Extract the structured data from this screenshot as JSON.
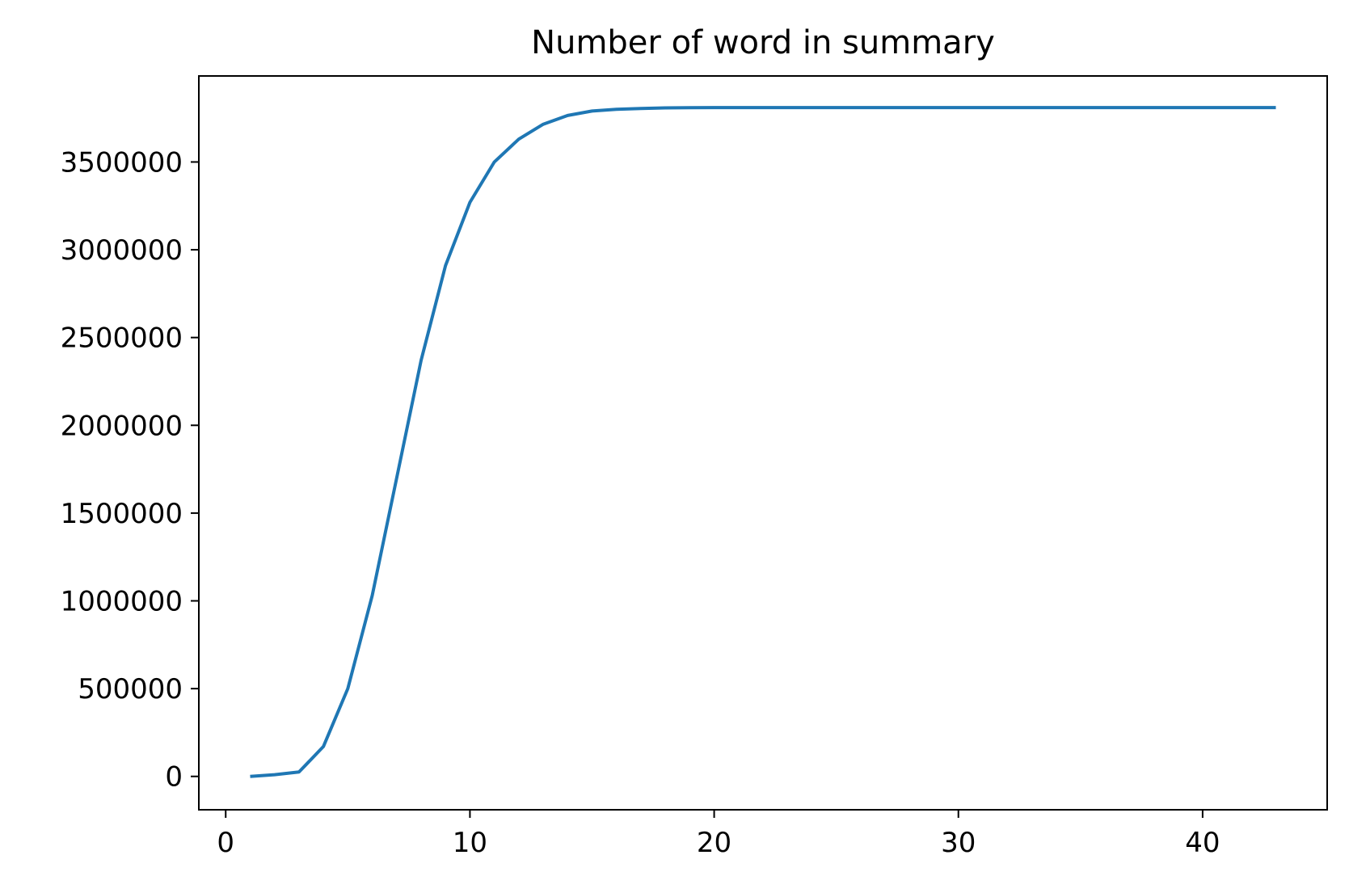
{
  "chart_data": {
    "type": "line",
    "title": "Number of word in summary",
    "xlabel": "",
    "ylabel": "",
    "xlim": [
      -1.1,
      45.1
    ],
    "ylim": [
      -190000,
      3990000
    ],
    "x_ticks": [
      0,
      10,
      20,
      30,
      40
    ],
    "y_ticks": [
      0,
      500000,
      1000000,
      1500000,
      2000000,
      2500000,
      3000000,
      3500000
    ],
    "x_tick_labels": [
      "0",
      "10",
      "20",
      "30",
      "40"
    ],
    "y_tick_labels": [
      "0",
      "500000",
      "1000000",
      "1500000",
      "2000000",
      "2500000",
      "3000000",
      "3500000"
    ],
    "grid": false,
    "legend": "none",
    "series": [
      {
        "color": "#1f77b4",
        "x": [
          1,
          2,
          3,
          4,
          5,
          6,
          7,
          8,
          9,
          10,
          11,
          12,
          13,
          14,
          15,
          16,
          17,
          18,
          19,
          20,
          21,
          22,
          23,
          24,
          25,
          26,
          27,
          28,
          29,
          30,
          31,
          32,
          33,
          34,
          35,
          36,
          37,
          38,
          39,
          40,
          41,
          42,
          43
        ],
        "y": [
          0,
          10000,
          25000,
          170000,
          500000,
          1030000,
          1700000,
          2370000,
          2910000,
          3270000,
          3500000,
          3630000,
          3715000,
          3765000,
          3790000,
          3800000,
          3805000,
          3808000,
          3809000,
          3810000,
          3810000,
          3810000,
          3810000,
          3810000,
          3810000,
          3810000,
          3810000,
          3810000,
          3810000,
          3810000,
          3810000,
          3810000,
          3810000,
          3810000,
          3810000,
          3810000,
          3810000,
          3810000,
          3810000,
          3810000,
          3810000,
          3810000,
          3810000
        ]
      }
    ]
  }
}
